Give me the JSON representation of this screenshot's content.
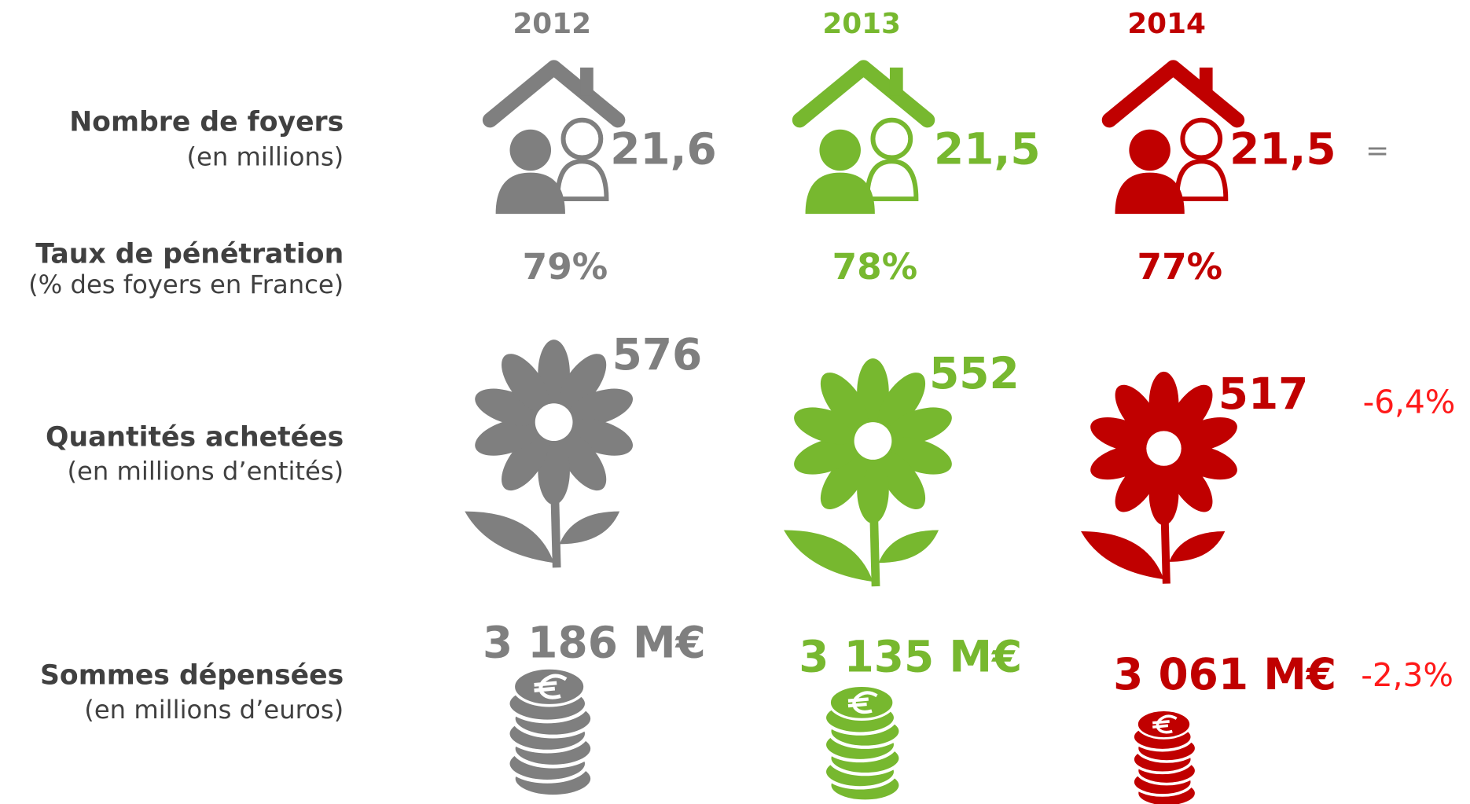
{
  "row_labels": [
    {
      "title": "Nombre de foyers",
      "subtitle": "(en millions)"
    },
    {
      "title": "Taux de pénétration",
      "subtitle": "(% des foyers en France)"
    },
    {
      "title": "Quantités achetées",
      "subtitle": "(en millions d’entités)"
    },
    {
      "title": "Sommes dépensées",
      "subtitle": "(en millions d’euros)"
    }
  ],
  "years": [
    {
      "year": "2012",
      "color": "#7f7f7f",
      "households": "21,6",
      "penetration": "79%",
      "quantities": "576",
      "spending": "3 186 M€"
    },
    {
      "year": "2013",
      "color": "#77b82f",
      "households": "21,5",
      "penetration": "78%",
      "quantities": "552",
      "spending": "3 135 M€"
    },
    {
      "year": "2014",
      "color": "#c00000",
      "households": "21,5",
      "penetration": "77%",
      "quantities": "517",
      "spending": "3 061 M€"
    }
  ],
  "changes": {
    "households": "=",
    "quantities": "-6,4%",
    "spending": "-2,3%"
  }
}
